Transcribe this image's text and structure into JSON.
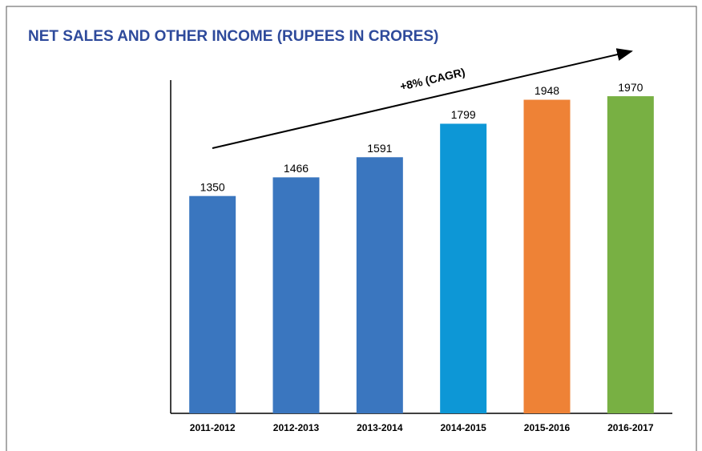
{
  "chart_data": {
    "type": "bar",
    "title": "NET SALES AND OTHER INCOME (RUPEES IN CRORES)",
    "annotation": "+8% (CAGR)",
    "categories": [
      "2011-2012",
      "2012-2013",
      "2013-2014",
      "2014-2015",
      "2015-2016",
      "2016-2017"
    ],
    "values": [
      1350,
      1466,
      1591,
      1799,
      1948,
      1970
    ],
    "colors": [
      "#3a76bf",
      "#3a76bf",
      "#3a76bf",
      "#0d97d6",
      "#ee8236",
      "#78b043"
    ],
    "ylim": [
      0,
      2070
    ]
  }
}
